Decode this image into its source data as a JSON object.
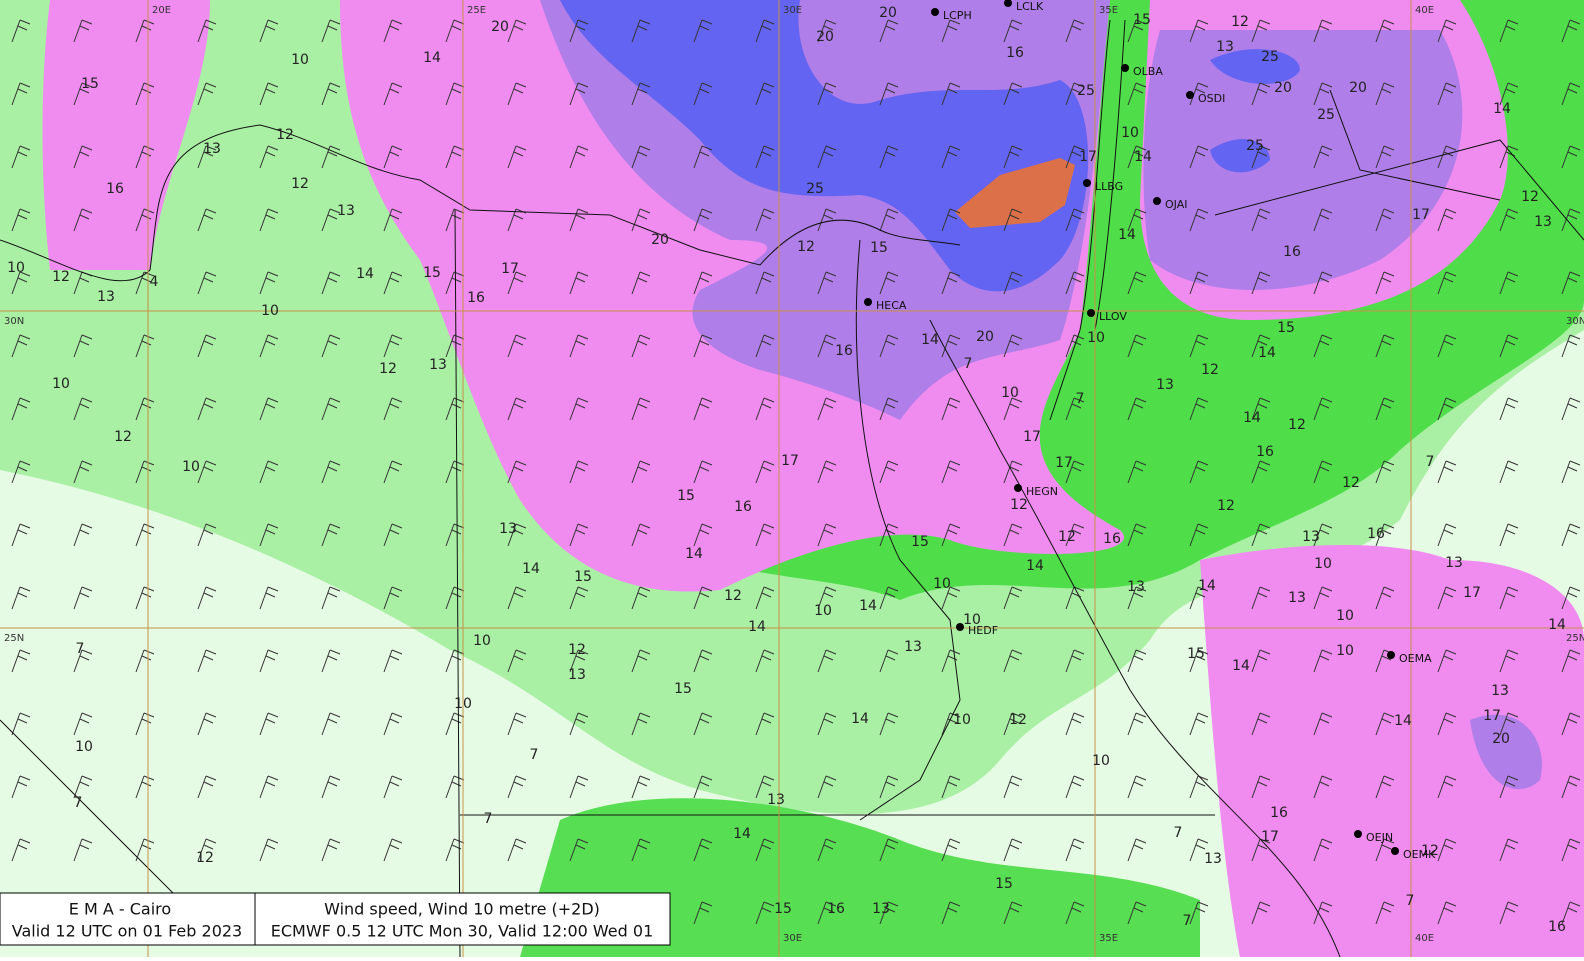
{
  "footer": {
    "left": [
      "E M A  -  Cairo",
      "Valid 12 UTC on 01 Feb 2023"
    ],
    "right": [
      "Wind speed, Wind  10 metre (+2D)",
      "ECMWF 0.5 12 UTC Mon 30, Valid 12:00 Wed 01"
    ]
  },
  "grid": {
    "longitudes": [
      "20E",
      "25E",
      "30E",
      "35E",
      "40E"
    ],
    "latitudes": [
      "30N",
      "25N"
    ]
  },
  "stations": [
    "LCPH",
    "LCLK",
    "OLBA",
    "OSDI",
    "LLBG",
    "OJAI",
    "HECA",
    "LLOV",
    "HEGN",
    "HEDF",
    "OEMA",
    "OEJN",
    "OEMK"
  ],
  "contour_labels": [
    15,
    10,
    14,
    20,
    20,
    20,
    16,
    15,
    12,
    13,
    25,
    20,
    20,
    25,
    25,
    25,
    14,
    12,
    13,
    12,
    16,
    13,
    25,
    17,
    14,
    10,
    12,
    15,
    20,
    17,
    16,
    14,
    15,
    10,
    12,
    13,
    4,
    10,
    17,
    12,
    13,
    16,
    14,
    20,
    14,
    7,
    16,
    10,
    15,
    14,
    12,
    13,
    12,
    13,
    10,
    10,
    7,
    14,
    12,
    17,
    17,
    16,
    7,
    12,
    10,
    17,
    12,
    15,
    16,
    13,
    12,
    12,
    12,
    16,
    13,
    16,
    15,
    14,
    14,
    15,
    10,
    13,
    14,
    10,
    13,
    14,
    17,
    13,
    10,
    14,
    12,
    10,
    14,
    10,
    10,
    7,
    12,
    13,
    15,
    14,
    10,
    14,
    13,
    15,
    13,
    10,
    14,
    12,
    10,
    14,
    17,
    10,
    7,
    20,
    10,
    7,
    13,
    16,
    7,
    14,
    7,
    17,
    12,
    13,
    12,
    15,
    15,
    16,
    13,
    7,
    7,
    16
  ]
}
